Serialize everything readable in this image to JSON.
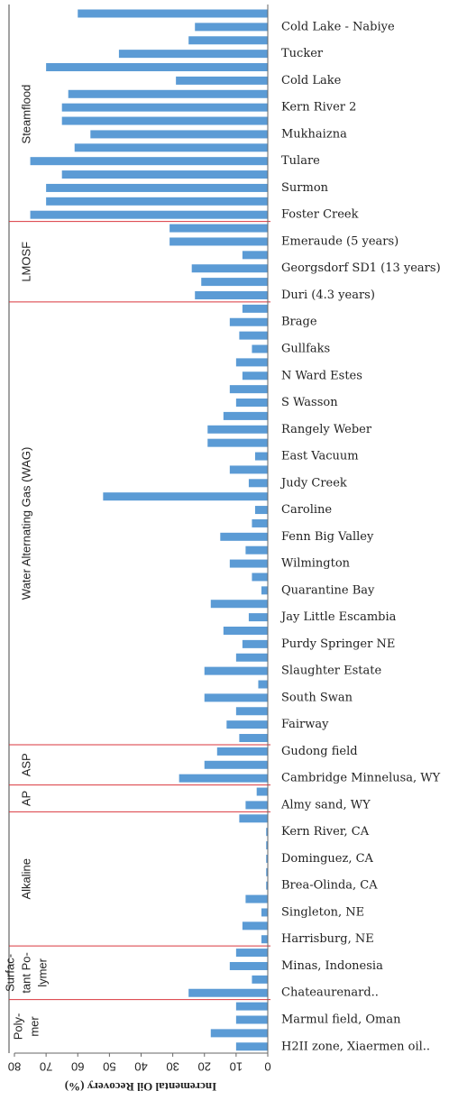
{
  "chart_data": {
    "type": "bar",
    "orientation": "horizontal",
    "color": "#5b9bd5",
    "separator_color": "#d9363e",
    "x_label": "Incremental Oil Recovery (%)",
    "xlim": [
      0,
      80
    ],
    "xticks": [
      80,
      70,
      60,
      50,
      40,
      30,
      20,
      10,
      0
    ],
    "groups": [
      {
        "name": [
          "Steamflood"
        ],
        "categories": [
          null,
          "Cold Lake - Nabiye",
          null,
          "Tucker",
          null,
          "Cold Lake",
          null,
          "Kern River 2",
          null,
          "Mukhaizna",
          null,
          "Tulare",
          null,
          "Surmon",
          null,
          "Foster Creek"
        ],
        "values": [
          60,
          23,
          25,
          47,
          70,
          29,
          63,
          65,
          65,
          56,
          61,
          75,
          65,
          70,
          70,
          75
        ]
      },
      {
        "name": [
          "LMOSF"
        ],
        "categories": [
          null,
          "Emeraude (5 years)",
          null,
          "Georgsdorf SD1 (13 years)",
          null,
          "Duri (4.3 years)"
        ],
        "values": [
          31,
          31,
          8,
          24,
          21,
          23
        ]
      },
      {
        "name": [
          "Water Alternating Gas (WAG)"
        ],
        "categories": [
          null,
          "Brage",
          null,
          "Gullfaks",
          null,
          "N Ward Estes",
          null,
          "S Wasson",
          null,
          "Rangely Weber",
          null,
          "East Vacuum",
          null,
          "Judy Creek",
          null,
          "Caroline",
          null,
          "Fenn Big Valley",
          null,
          "Wilmington",
          null,
          "Quarantine Bay",
          null,
          "Jay Little Escambia",
          null,
          "Purdy Springer NE",
          null,
          "Slaughter Estate",
          null,
          "South Swan",
          null,
          "Fairway",
          null
        ],
        "values": [
          8,
          12,
          9,
          5,
          10,
          8,
          12,
          10,
          14,
          19,
          19,
          4,
          12,
          6,
          52,
          4,
          5,
          15,
          7,
          12,
          5,
          2,
          18,
          6,
          14,
          8,
          10,
          20,
          3,
          20,
          10,
          13,
          9
        ]
      },
      {
        "name": [
          "ASP"
        ],
        "categories": [
          "Gudong field",
          null,
          "Cambridge Minnelusa, WY"
        ],
        "values": [
          16,
          20,
          28
        ]
      },
      {
        "name": [
          "AP"
        ],
        "categories": [
          null,
          "Almy sand, WY"
        ],
        "values": [
          3.5,
          7
        ]
      },
      {
        "name": [
          "Alkaline"
        ],
        "categories": [
          null,
          "Kern River, CA",
          null,
          "Dominguez, CA",
          null,
          "Brea-Olinda, CA",
          null,
          "Singleton, NE",
          null,
          "Harrisburg, NE"
        ],
        "values": [
          9,
          0.5,
          0.5,
          0.5,
          0.5,
          0.5,
          7,
          2,
          8,
          2
        ]
      },
      {
        "name": [
          "Surfac-",
          "tant Po-",
          "lymer"
        ],
        "categories": [
          null,
          "Minas, Indonesia",
          null,
          "Chateaurenard.."
        ],
        "values": [
          10,
          12,
          5,
          25
        ]
      },
      {
        "name": [
          "Poly-",
          "mer"
        ],
        "categories": [
          null,
          "Marmul field, Oman",
          null,
          "H2II zone, Xiaermen oil.."
        ],
        "values": [
          10,
          10,
          18,
          10
        ]
      }
    ]
  }
}
